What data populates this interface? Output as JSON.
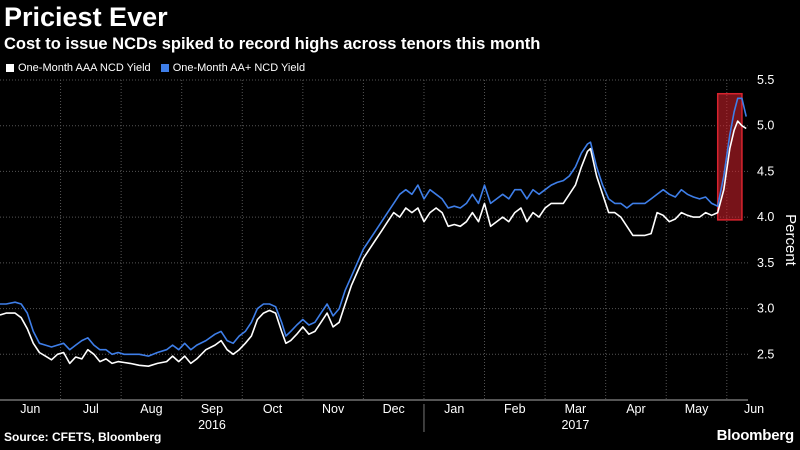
{
  "header": {
    "title": "Priciest Ever",
    "subtitle": "Cost to issue NCDs spiked to record highs across tenors this month"
  },
  "legend": [
    {
      "label": "One-Month AAA NCD Yield",
      "color": "#ffffff"
    },
    {
      "label": "One-Month AA+ NCD Yield",
      "color": "#3e7ee8"
    }
  ],
  "footer": {
    "source": "Source: CFETS, Bloomberg",
    "brand": "Bloomberg"
  },
  "chart_data": {
    "type": "line",
    "title": "Priciest Ever",
    "subtitle": "Cost to issue NCDs spiked to record highs across tenors this month",
    "xlabel": "",
    "ylabel": "Percent",
    "ylim": [
      2.0,
      5.5
    ],
    "y_ticks": [
      2.5,
      3.0,
      3.5,
      4.0,
      4.5,
      5.0,
      5.5
    ],
    "y_tick_labels": [
      "2.5",
      "3.0",
      "3.5",
      "4.0",
      "4.5",
      "5.0",
      "5.5"
    ],
    "xlim": [
      0,
      12.35
    ],
    "x_ticks": [
      {
        "label": "Jun",
        "pos": 0.5
      },
      {
        "label": "Jul",
        "pos": 1.5
      },
      {
        "label": "Aug",
        "pos": 2.5
      },
      {
        "label": "Sep",
        "pos": 3.5
      },
      {
        "label": "Oct",
        "pos": 4.5
      },
      {
        "label": "Nov",
        "pos": 5.5
      },
      {
        "label": "Dec",
        "pos": 6.5
      },
      {
        "label": "Jan",
        "pos": 7.5
      },
      {
        "label": "Feb",
        "pos": 8.5
      },
      {
        "label": "Mar",
        "pos": 9.5
      },
      {
        "label": "Apr",
        "pos": 10.5
      },
      {
        "label": "May",
        "pos": 11.5
      },
      {
        "label": "Jun",
        "pos": 12.45
      }
    ],
    "year_labels": [
      {
        "label": "2016",
        "pos": 3.5
      },
      {
        "label": "2017",
        "pos": 9.5
      }
    ],
    "grid": true,
    "highlight_box": {
      "x_start": 11.85,
      "x_end": 12.25,
      "y_start": 3.97,
      "y_end": 5.35,
      "color": "#d9232e"
    },
    "series": [
      {
        "name": "One-Month AAA NCD Yield",
        "color": "#ffffff",
        "points": [
          [
            0,
            2.93
          ],
          [
            0.1,
            2.95
          ],
          [
            0.25,
            2.95
          ],
          [
            0.35,
            2.9
          ],
          [
            0.45,
            2.78
          ],
          [
            0.55,
            2.62
          ],
          [
            0.65,
            2.52
          ],
          [
            0.75,
            2.48
          ],
          [
            0.85,
            2.44
          ],
          [
            0.95,
            2.5
          ],
          [
            1.05,
            2.52
          ],
          [
            1.15,
            2.4
          ],
          [
            1.25,
            2.47
          ],
          [
            1.35,
            2.45
          ],
          [
            1.45,
            2.55
          ],
          [
            1.55,
            2.5
          ],
          [
            1.65,
            2.42
          ],
          [
            1.75,
            2.45
          ],
          [
            1.85,
            2.4
          ],
          [
            1.95,
            2.42
          ],
          [
            2.05,
            2.41
          ],
          [
            2.15,
            2.4
          ],
          [
            2.3,
            2.38
          ],
          [
            2.45,
            2.37
          ],
          [
            2.6,
            2.4
          ],
          [
            2.75,
            2.42
          ],
          [
            2.85,
            2.48
          ],
          [
            2.95,
            2.42
          ],
          [
            3.05,
            2.48
          ],
          [
            3.15,
            2.4
          ],
          [
            3.25,
            2.45
          ],
          [
            3.4,
            2.55
          ],
          [
            3.55,
            2.6
          ],
          [
            3.65,
            2.65
          ],
          [
            3.75,
            2.55
          ],
          [
            3.85,
            2.5
          ],
          [
            3.95,
            2.55
          ],
          [
            4.05,
            2.62
          ],
          [
            4.15,
            2.7
          ],
          [
            4.25,
            2.88
          ],
          [
            4.35,
            2.95
          ],
          [
            4.45,
            2.98
          ],
          [
            4.55,
            2.95
          ],
          [
            4.65,
            2.75
          ],
          [
            4.72,
            2.62
          ],
          [
            4.8,
            2.65
          ],
          [
            4.9,
            2.72
          ],
          [
            5.0,
            2.8
          ],
          [
            5.1,
            2.72
          ],
          [
            5.2,
            2.75
          ],
          [
            5.3,
            2.85
          ],
          [
            5.4,
            2.95
          ],
          [
            5.5,
            2.8
          ],
          [
            5.6,
            2.85
          ],
          [
            5.7,
            3.05
          ],
          [
            5.8,
            3.25
          ],
          [
            5.9,
            3.4
          ],
          [
            6.0,
            3.55
          ],
          [
            6.1,
            3.65
          ],
          [
            6.2,
            3.75
          ],
          [
            6.3,
            3.85
          ],
          [
            6.4,
            3.95
          ],
          [
            6.5,
            4.05
          ],
          [
            6.6,
            4.0
          ],
          [
            6.7,
            4.1
          ],
          [
            6.8,
            4.05
          ],
          [
            6.9,
            4.1
          ],
          [
            7.0,
            3.95
          ],
          [
            7.1,
            4.05
          ],
          [
            7.2,
            4.1
          ],
          [
            7.3,
            4.05
          ],
          [
            7.4,
            3.9
          ],
          [
            7.5,
            3.92
          ],
          [
            7.6,
            3.9
          ],
          [
            7.7,
            3.95
          ],
          [
            7.8,
            4.05
          ],
          [
            7.9,
            3.95
          ],
          [
            8.0,
            4.15
          ],
          [
            8.1,
            3.9
          ],
          [
            8.2,
            3.95
          ],
          [
            8.3,
            4.0
          ],
          [
            8.4,
            3.95
          ],
          [
            8.5,
            4.05
          ],
          [
            8.6,
            4.1
          ],
          [
            8.7,
            3.95
          ],
          [
            8.8,
            4.05
          ],
          [
            8.9,
            4.0
          ],
          [
            9.0,
            4.1
          ],
          [
            9.1,
            4.15
          ],
          [
            9.2,
            4.15
          ],
          [
            9.3,
            4.15
          ],
          [
            9.4,
            4.25
          ],
          [
            9.5,
            4.35
          ],
          [
            9.6,
            4.55
          ],
          [
            9.7,
            4.72
          ],
          [
            9.75,
            4.75
          ],
          [
            9.85,
            4.45
          ],
          [
            9.95,
            4.25
          ],
          [
            10.05,
            4.05
          ],
          [
            10.15,
            4.05
          ],
          [
            10.25,
            4.0
          ],
          [
            10.35,
            3.9
          ],
          [
            10.45,
            3.8
          ],
          [
            10.55,
            3.8
          ],
          [
            10.65,
            3.8
          ],
          [
            10.75,
            3.82
          ],
          [
            10.85,
            4.05
          ],
          [
            10.95,
            4.02
          ],
          [
            11.05,
            3.95
          ],
          [
            11.15,
            3.98
          ],
          [
            11.25,
            4.05
          ],
          [
            11.35,
            4.02
          ],
          [
            11.45,
            4.0
          ],
          [
            11.55,
            4.0
          ],
          [
            11.65,
            4.05
          ],
          [
            11.75,
            4.02
          ],
          [
            11.85,
            4.05
          ],
          [
            11.95,
            4.3
          ],
          [
            12.05,
            4.75
          ],
          [
            12.12,
            4.95
          ],
          [
            12.18,
            5.05
          ],
          [
            12.25,
            5.0
          ],
          [
            12.32,
            4.97
          ]
        ]
      },
      {
        "name": "One-Month AA+ NCD Yield",
        "color": "#3e7ee8",
        "points": [
          [
            0,
            3.05
          ],
          [
            0.1,
            3.05
          ],
          [
            0.25,
            3.07
          ],
          [
            0.35,
            3.05
          ],
          [
            0.45,
            2.95
          ],
          [
            0.55,
            2.75
          ],
          [
            0.65,
            2.62
          ],
          [
            0.75,
            2.6
          ],
          [
            0.85,
            2.58
          ],
          [
            0.95,
            2.6
          ],
          [
            1.05,
            2.62
          ],
          [
            1.15,
            2.55
          ],
          [
            1.25,
            2.6
          ],
          [
            1.35,
            2.65
          ],
          [
            1.45,
            2.68
          ],
          [
            1.55,
            2.6
          ],
          [
            1.65,
            2.55
          ],
          [
            1.75,
            2.55
          ],
          [
            1.85,
            2.5
          ],
          [
            1.95,
            2.52
          ],
          [
            2.05,
            2.5
          ],
          [
            2.15,
            2.5
          ],
          [
            2.3,
            2.5
          ],
          [
            2.45,
            2.48
          ],
          [
            2.6,
            2.52
          ],
          [
            2.75,
            2.55
          ],
          [
            2.85,
            2.6
          ],
          [
            2.95,
            2.55
          ],
          [
            3.05,
            2.62
          ],
          [
            3.15,
            2.55
          ],
          [
            3.25,
            2.6
          ],
          [
            3.4,
            2.65
          ],
          [
            3.55,
            2.72
          ],
          [
            3.65,
            2.75
          ],
          [
            3.75,
            2.65
          ],
          [
            3.85,
            2.62
          ],
          [
            3.95,
            2.7
          ],
          [
            4.05,
            2.75
          ],
          [
            4.15,
            2.85
          ],
          [
            4.25,
            3.0
          ],
          [
            4.35,
            3.05
          ],
          [
            4.45,
            3.05
          ],
          [
            4.55,
            3.02
          ],
          [
            4.65,
            2.85
          ],
          [
            4.72,
            2.7
          ],
          [
            4.8,
            2.75
          ],
          [
            4.9,
            2.82
          ],
          [
            5.0,
            2.88
          ],
          [
            5.1,
            2.82
          ],
          [
            5.2,
            2.85
          ],
          [
            5.3,
            2.95
          ],
          [
            5.4,
            3.05
          ],
          [
            5.5,
            2.92
          ],
          [
            5.6,
            3.0
          ],
          [
            5.7,
            3.2
          ],
          [
            5.8,
            3.35
          ],
          [
            5.9,
            3.5
          ],
          [
            6.0,
            3.65
          ],
          [
            6.1,
            3.75
          ],
          [
            6.2,
            3.85
          ],
          [
            6.3,
            3.95
          ],
          [
            6.4,
            4.05
          ],
          [
            6.5,
            4.15
          ],
          [
            6.6,
            4.25
          ],
          [
            6.7,
            4.3
          ],
          [
            6.8,
            4.25
          ],
          [
            6.9,
            4.35
          ],
          [
            7.0,
            4.2
          ],
          [
            7.1,
            4.3
          ],
          [
            7.2,
            4.25
          ],
          [
            7.3,
            4.2
          ],
          [
            7.4,
            4.1
          ],
          [
            7.5,
            4.12
          ],
          [
            7.6,
            4.1
          ],
          [
            7.7,
            4.15
          ],
          [
            7.8,
            4.25
          ],
          [
            7.9,
            4.15
          ],
          [
            8.0,
            4.35
          ],
          [
            8.1,
            4.15
          ],
          [
            8.2,
            4.2
          ],
          [
            8.3,
            4.25
          ],
          [
            8.4,
            4.2
          ],
          [
            8.5,
            4.3
          ],
          [
            8.6,
            4.3
          ],
          [
            8.7,
            4.2
          ],
          [
            8.8,
            4.3
          ],
          [
            8.9,
            4.25
          ],
          [
            9.0,
            4.3
          ],
          [
            9.1,
            4.35
          ],
          [
            9.2,
            4.38
          ],
          [
            9.3,
            4.4
          ],
          [
            9.4,
            4.45
          ],
          [
            9.5,
            4.55
          ],
          [
            9.6,
            4.7
          ],
          [
            9.7,
            4.8
          ],
          [
            9.75,
            4.82
          ],
          [
            9.85,
            4.55
          ],
          [
            9.95,
            4.35
          ],
          [
            10.05,
            4.2
          ],
          [
            10.15,
            4.15
          ],
          [
            10.25,
            4.15
          ],
          [
            10.35,
            4.1
          ],
          [
            10.45,
            4.15
          ],
          [
            10.55,
            4.15
          ],
          [
            10.65,
            4.15
          ],
          [
            10.75,
            4.2
          ],
          [
            10.85,
            4.25
          ],
          [
            10.95,
            4.3
          ],
          [
            11.05,
            4.25
          ],
          [
            11.15,
            4.22
          ],
          [
            11.25,
            4.3
          ],
          [
            11.35,
            4.25
          ],
          [
            11.45,
            4.22
          ],
          [
            11.55,
            4.2
          ],
          [
            11.65,
            4.22
          ],
          [
            11.75,
            4.15
          ],
          [
            11.85,
            4.12
          ],
          [
            11.95,
            4.45
          ],
          [
            12.05,
            4.9
          ],
          [
            12.12,
            5.15
          ],
          [
            12.18,
            5.3
          ],
          [
            12.25,
            5.3
          ],
          [
            12.32,
            5.1
          ]
        ]
      }
    ]
  }
}
